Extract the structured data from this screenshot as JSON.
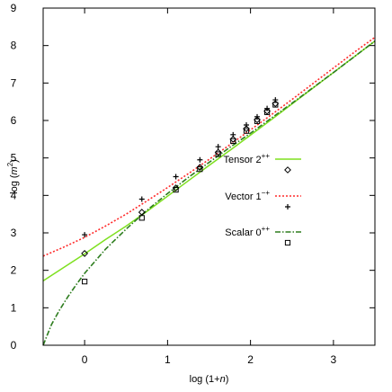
{
  "chart_data": {
    "type": "line",
    "title": "",
    "xlabel": {
      "prefix": "log (1+",
      "var": "n",
      "suffix": ")"
    },
    "ylabel": {
      "prefix": "log (",
      "var": "m",
      "sup": "2",
      "suffix": ")"
    },
    "xlim": [
      -0.5,
      3.5
    ],
    "ylim": [
      0,
      9
    ],
    "xticks": [
      0,
      1,
      2,
      3
    ],
    "yticks": [
      0,
      1,
      2,
      3,
      4,
      5,
      6,
      7,
      8,
      9
    ],
    "grid": false,
    "legend_position": "right",
    "series": [
      {
        "name": "Tensor 2",
        "name_sup": "++",
        "line_style": "solid",
        "line_color": "#7ee01f",
        "marker": "diamond",
        "x": [
          -0.5,
          -0.25,
          0,
          0.25,
          0.5,
          0.75,
          1.0,
          1.25,
          1.5,
          1.75,
          2.0,
          2.25,
          2.5,
          2.75,
          3.0,
          3.25,
          3.5
        ],
        "y": [
          1.72,
          2.08,
          2.44,
          2.82,
          3.18,
          3.57,
          3.98,
          4.39,
          4.8,
          5.2,
          5.61,
          6.02,
          6.44,
          6.86,
          7.28,
          7.7,
          8.12
        ],
        "points": {
          "x": [
            0,
            0.69,
            1.1,
            1.39,
            1.61,
            1.79,
            1.95,
            2.08,
            2.2,
            2.3
          ],
          "y": [
            2.45,
            3.55,
            4.2,
            4.75,
            5.15,
            5.5,
            5.78,
            6.02,
            6.25,
            6.45
          ]
        }
      },
      {
        "name": "Vector 1",
        "name_sup": "−+",
        "line_style": "dotted",
        "line_color": "#ff2a2a",
        "marker": "plus",
        "x": [
          -0.5,
          -0.25,
          0,
          0.25,
          0.5,
          0.75,
          1.0,
          1.25,
          1.5,
          1.75,
          2.0,
          2.25,
          2.5,
          2.75,
          3.0,
          3.25,
          3.5
        ],
        "y": [
          2.38,
          2.62,
          2.88,
          3.18,
          3.5,
          3.85,
          4.21,
          4.58,
          4.96,
          5.35,
          5.75,
          6.15,
          6.56,
          6.98,
          7.4,
          7.82,
          8.22
        ],
        "points": {
          "x": [
            0,
            0.69,
            1.1,
            1.39,
            1.61,
            1.79,
            1.95,
            2.08,
            2.2,
            2.3
          ],
          "y": [
            2.95,
            3.9,
            4.5,
            4.95,
            5.3,
            5.62,
            5.88,
            6.1,
            6.32,
            6.55
          ]
        }
      },
      {
        "name": "Scalar 0",
        "name_sup": "++",
        "line_style": "dash-dot",
        "line_color": "#2e7d1f",
        "marker": "square",
        "x": [
          -0.5,
          -0.4,
          -0.3,
          -0.2,
          -0.1,
          0,
          0.25,
          0.5,
          0.75,
          1.0,
          1.25,
          1.5,
          1.75,
          2.0,
          2.25,
          2.5,
          2.75,
          3.0,
          3.25,
          3.5
        ],
        "y": [
          0.0,
          0.55,
          0.95,
          1.3,
          1.62,
          1.92,
          2.56,
          3.1,
          3.6,
          4.05,
          4.48,
          4.88,
          5.28,
          5.66,
          6.06,
          6.46,
          6.87,
          7.28,
          7.7,
          8.12
        ],
        "points": {
          "x": [
            0,
            0.69,
            1.1,
            1.39,
            1.61,
            1.79,
            1.95,
            2.08,
            2.2,
            2.3
          ],
          "y": [
            1.7,
            3.4,
            4.15,
            4.7,
            5.1,
            5.45,
            5.72,
            5.98,
            6.22,
            6.42
          ]
        }
      }
    ]
  }
}
